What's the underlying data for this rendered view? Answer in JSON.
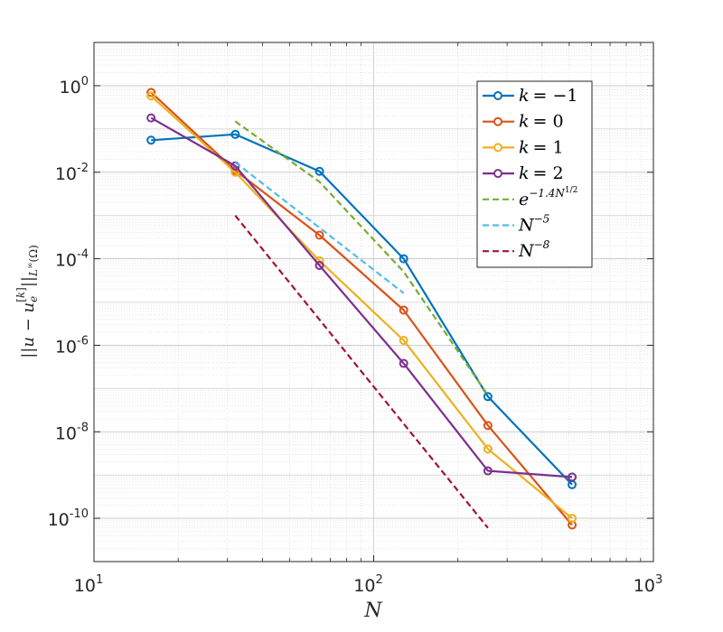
{
  "chart_data": {
    "type": "line",
    "xscale": "log",
    "yscale": "log",
    "xlim": [
      10,
      1000
    ],
    "ylim": [
      1e-11,
      10
    ],
    "grid": true,
    "minor_grid": true,
    "legend_position": "top-right",
    "xlabel": "N",
    "ylabel": "||u − u_e^[k]||_L∞(Ω)",
    "x_ticks": [
      {
        "value": 10,
        "base": "10",
        "exp": "1"
      },
      {
        "value": 100,
        "base": "10",
        "exp": "2"
      },
      {
        "value": 1000,
        "base": "10",
        "exp": "3"
      }
    ],
    "y_ticks": [
      {
        "value": 1,
        "base": "10",
        "exp": "0"
      },
      {
        "value": 0.01,
        "base": "10",
        "exp": "-2"
      },
      {
        "value": 0.0001,
        "base": "10",
        "exp": "-4"
      },
      {
        "value": 1e-06,
        "base": "10",
        "exp": "-6"
      },
      {
        "value": 1e-08,
        "base": "10",
        "exp": "-8"
      },
      {
        "value": 1e-10,
        "base": "10",
        "exp": "-10"
      }
    ],
    "series": [
      {
        "name": "k = −1",
        "color": "#0072BD",
        "style": "solid",
        "marker": "circle",
        "x": [
          16,
          32,
          64,
          128,
          256,
          512
        ],
        "y": [
          0.055,
          0.075,
          0.0105,
          0.0001,
          6.5e-08,
          6e-10
        ]
      },
      {
        "name": "k = 0",
        "color": "#D95319",
        "style": "solid",
        "marker": "circle",
        "x": [
          16,
          32,
          64,
          128,
          256,
          512
        ],
        "y": [
          0.7,
          0.011,
          0.00035,
          6.5e-06,
          1.4e-08,
          7e-11
        ]
      },
      {
        "name": "k = 1",
        "color": "#EDB120",
        "style": "solid",
        "marker": "circle",
        "x": [
          16,
          32,
          64,
          128,
          256,
          512
        ],
        "y": [
          0.58,
          0.01,
          9e-05,
          1.3e-06,
          4e-09,
          1e-10
        ]
      },
      {
        "name": "k = 2",
        "color": "#7E2F8E",
        "style": "solid",
        "marker": "circle",
        "x": [
          16,
          32,
          64,
          128,
          256,
          512
        ],
        "y": [
          0.18,
          0.014,
          7e-05,
          3.8e-07,
          1.25e-09,
          9e-10
        ]
      },
      {
        "name": "e^(−1.4N^1/2)",
        "color": "#77AC30",
        "style": "dashed",
        "marker": "none",
        "x": [
          32,
          64,
          128,
          256
        ],
        "y": [
          0.15,
          0.006,
          5e-05,
          7e-08
        ]
      },
      {
        "name": "N^−5",
        "color": "#4DBEEE",
        "style": "dashed",
        "marker": "none",
        "x": [
          32,
          128
        ],
        "y": [
          0.017,
          1.6e-05
        ]
      },
      {
        "name": "N^−8",
        "color": "#A2142F",
        "style": "dashed",
        "marker": "none",
        "x": [
          32,
          256
        ],
        "y": [
          0.001,
          6e-11
        ]
      }
    ],
    "legend": [
      {
        "lhs": "k",
        "rhs": "= −1"
      },
      {
        "lhs": "k",
        "rhs": "= 0"
      },
      {
        "lhs": "k",
        "rhs": "= 1"
      },
      {
        "lhs": "k",
        "rhs": "= 2"
      },
      {
        "base": "e",
        "sup": "−1.4N",
        "supsup": "1/2"
      },
      {
        "base": "N",
        "sup": "−5"
      },
      {
        "base": "N",
        "sup": "−8"
      }
    ]
  }
}
